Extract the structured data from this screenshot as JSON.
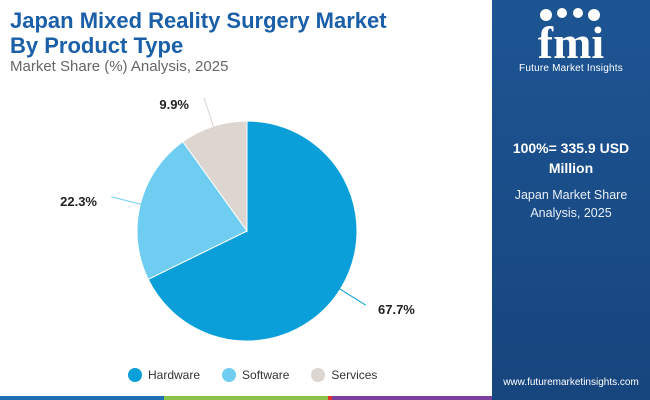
{
  "header": {
    "title_line1": "Japan Mixed Reality Surgery Market",
    "title_line2": "By Product Type",
    "subtitle": "Market Share (%) Analysis, 2025"
  },
  "chart_data": {
    "type": "pie",
    "title": "Japan Mixed Reality Surgery Market By Product Type",
    "subtitle": "Market Share (%) Analysis, 2025",
    "categories": [
      "Hardware",
      "Software",
      "Services"
    ],
    "values": [
      67.7,
      22.3,
      9.9
    ],
    "labels": [
      "67.7%",
      "22.3%",
      "9.9%"
    ],
    "colors": [
      "#0a9fd8",
      "#6ecdf0",
      "#ddd5cf"
    ],
    "legend_position": "bottom"
  },
  "side_panel": {
    "logo_text": "fmi",
    "brand": "Future Market Insights",
    "total_line1": "100%= 335.9 USD",
    "total_line2": "Million",
    "share_line1": "Japan Market Share",
    "share_line2": "Analysis, 2025",
    "website": "www.futuremarketinsights.com"
  },
  "colors": {
    "title": "#1a5fa8",
    "panel": "#1a4d8a",
    "bar_colors": [
      "#1f6fb5",
      "#8bc34a",
      "#e0342b",
      "#7b3fa0"
    ]
  }
}
